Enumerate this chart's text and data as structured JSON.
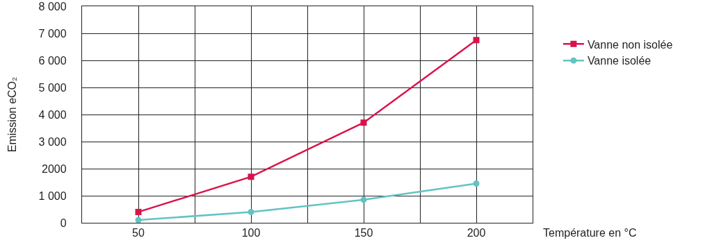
{
  "chart_data": {
    "type": "line",
    "xlabel": "Température en °C",
    "ylabel": "Emission eCO₂",
    "x": [
      50,
      100,
      150,
      200
    ],
    "series": [
      {
        "name": "Vanne non isolée",
        "color": "#d9134a",
        "values": [
          400,
          1700,
          3700,
          6750
        ],
        "marker": "square"
      },
      {
        "name": "Vanne isolée",
        "color": "#62c3c3",
        "values": [
          100,
          400,
          850,
          1450
        ],
        "marker": "circle"
      }
    ],
    "xlim": [
      25,
      225
    ],
    "xticks": [
      {
        "value": 25,
        "label": null
      },
      50,
      {
        "value": 75,
        "label": null
      },
      100,
      {
        "value": 125,
        "label": null
      },
      150,
      {
        "value": 175,
        "label": null
      },
      200
    ],
    "ylim": [
      0,
      8000
    ],
    "yticks": [
      0,
      {
        "value": 1000,
        "label": "1 000"
      },
      2000,
      {
        "value": 3000,
        "label": "3 000"
      },
      {
        "value": 4000,
        "label": "4 000"
      },
      {
        "value": 5000,
        "label": "5 000"
      },
      {
        "value": 6000,
        "label": "6 000"
      },
      {
        "value": 7000,
        "label": "7 000"
      },
      {
        "value": 8000,
        "label": "8 000"
      }
    ],
    "grid": true,
    "legend": "top right",
    "line_style": "solid"
  }
}
